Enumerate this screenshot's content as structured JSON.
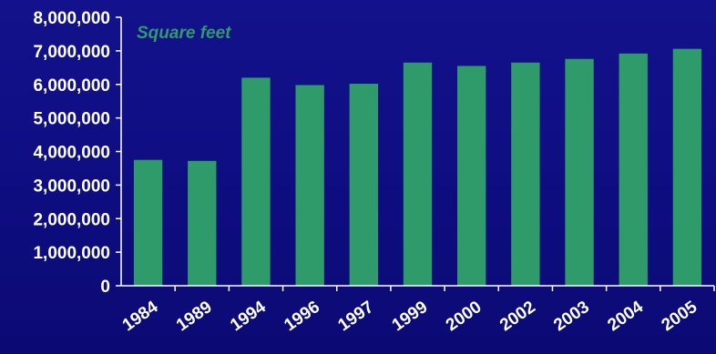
{
  "chart_data": {
    "type": "bar",
    "title": "",
    "unit_label": "Square feet",
    "xlabel": "",
    "ylabel": "",
    "categories": [
      "1984",
      "1989",
      "1994",
      "1996",
      "1997",
      "1999",
      "2000",
      "2002",
      "2003",
      "2004",
      "2005"
    ],
    "values": [
      3750000,
      3720000,
      6200000,
      5980000,
      6020000,
      6650000,
      6550000,
      6650000,
      6760000,
      6920000,
      7060000
    ],
    "ylim": [
      0,
      8000000
    ],
    "yticks": [
      "0",
      "1,000,000",
      "2,000,000",
      "3,000,000",
      "4,000,000",
      "5,000,000",
      "6,000,000",
      "7,000,000",
      "8,000,000"
    ],
    "grid": false,
    "legend": "none",
    "colors": {
      "bar": "#2f9a6a",
      "background": "#0f0e82",
      "axis": "#ffffff",
      "text": "#ffffff",
      "unit_label": "#2f9a6a"
    }
  }
}
